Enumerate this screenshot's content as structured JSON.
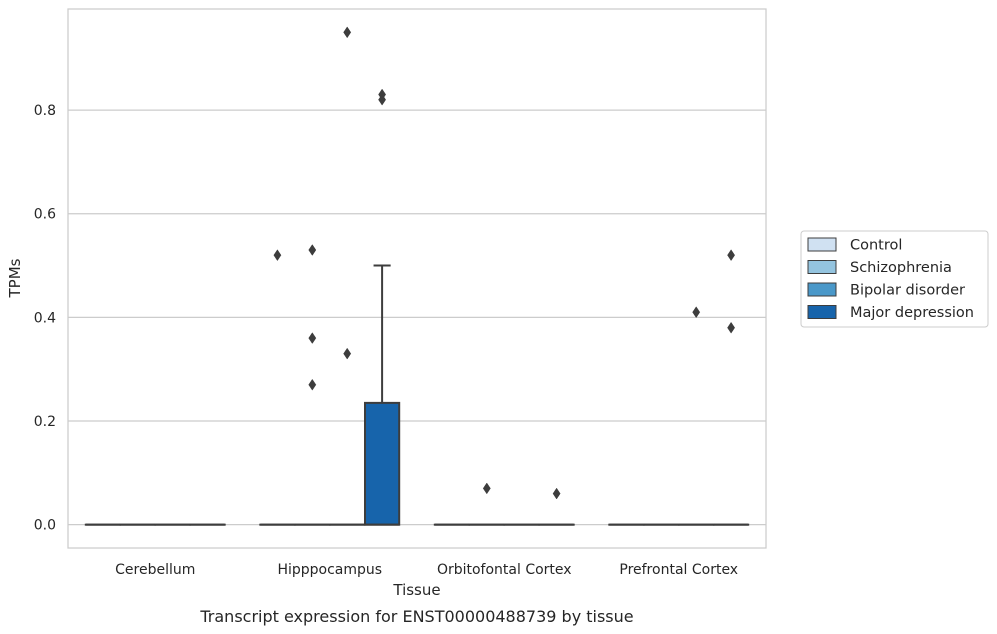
{
  "chart_data": {
    "type": "box",
    "title": "",
    "caption": "Transcript expression for ENST00000488739 by tissue",
    "xlabel": "Tissue",
    "ylabel": "TPMs",
    "ylim": [
      -0.045,
      0.995
    ],
    "yticks": [
      0.0,
      0.2,
      0.4,
      0.6,
      0.8
    ],
    "ytick_labels": [
      "0.0",
      "0.2",
      "0.4",
      "0.6",
      "0.8"
    ],
    "grid": "horizontal",
    "legend_position": "right",
    "categories": [
      "Cerebellum",
      "Hipppocampus",
      "Orbitofontal Cortex",
      "Prefrontal Cortex"
    ],
    "series": [
      {
        "name": "Control",
        "color": "#d0e1f2",
        "boxes": [
          {
            "q1": 0,
            "median": 0,
            "q3": 0,
            "whislo": 0,
            "whishi": 0,
            "fliers": []
          },
          {
            "q1": 0,
            "median": 0,
            "q3": 0,
            "whislo": 0,
            "whishi": 0,
            "fliers": [
              0.52
            ]
          },
          {
            "q1": 0,
            "median": 0,
            "q3": 0,
            "whislo": 0,
            "whishi": 0,
            "fliers": []
          },
          {
            "q1": 0,
            "median": 0,
            "q3": 0,
            "whislo": 0,
            "whishi": 0,
            "fliers": []
          }
        ]
      },
      {
        "name": "Schizophrenia",
        "color": "#94c4df",
        "boxes": [
          {
            "q1": 0,
            "median": 0,
            "q3": 0,
            "whislo": 0,
            "whishi": 0,
            "fliers": []
          },
          {
            "q1": 0,
            "median": 0,
            "q3": 0,
            "whislo": 0,
            "whishi": 0,
            "fliers": [
              0.53,
              0.36,
              0.27
            ]
          },
          {
            "q1": 0,
            "median": 0,
            "q3": 0,
            "whislo": 0,
            "whishi": 0,
            "fliers": [
              0.07
            ]
          },
          {
            "q1": 0,
            "median": 0,
            "q3": 0,
            "whislo": 0,
            "whishi": 0,
            "fliers": []
          }
        ]
      },
      {
        "name": "Bipolar disorder",
        "color": "#4a98c9",
        "boxes": [
          {
            "q1": 0,
            "median": 0,
            "q3": 0,
            "whislo": 0,
            "whishi": 0,
            "fliers": []
          },
          {
            "q1": 0,
            "median": 0,
            "q3": 0,
            "whislo": 0,
            "whishi": 0,
            "fliers": [
              0.95,
              0.33
            ]
          },
          {
            "q1": 0,
            "median": 0,
            "q3": 0,
            "whislo": 0,
            "whishi": 0,
            "fliers": []
          },
          {
            "q1": 0,
            "median": 0,
            "q3": 0,
            "whislo": 0,
            "whishi": 0,
            "fliers": [
              0.41
            ]
          }
        ]
      },
      {
        "name": "Major depression",
        "color": "#1764ab",
        "boxes": [
          {
            "q1": 0,
            "median": 0,
            "q3": 0,
            "whislo": 0,
            "whishi": 0,
            "fliers": []
          },
          {
            "q1": 0,
            "median": 0,
            "q3": 0.235,
            "whislo": 0,
            "whishi": 0.5,
            "fliers": [
              0.83,
              0.82
            ]
          },
          {
            "q1": 0,
            "median": 0,
            "q3": 0,
            "whislo": 0,
            "whishi": 0,
            "fliers": [
              0.06
            ]
          },
          {
            "q1": 0,
            "median": 0,
            "q3": 0,
            "whislo": 0,
            "whishi": 0,
            "fliers": [
              0.52,
              0.38
            ]
          }
        ]
      }
    ]
  }
}
